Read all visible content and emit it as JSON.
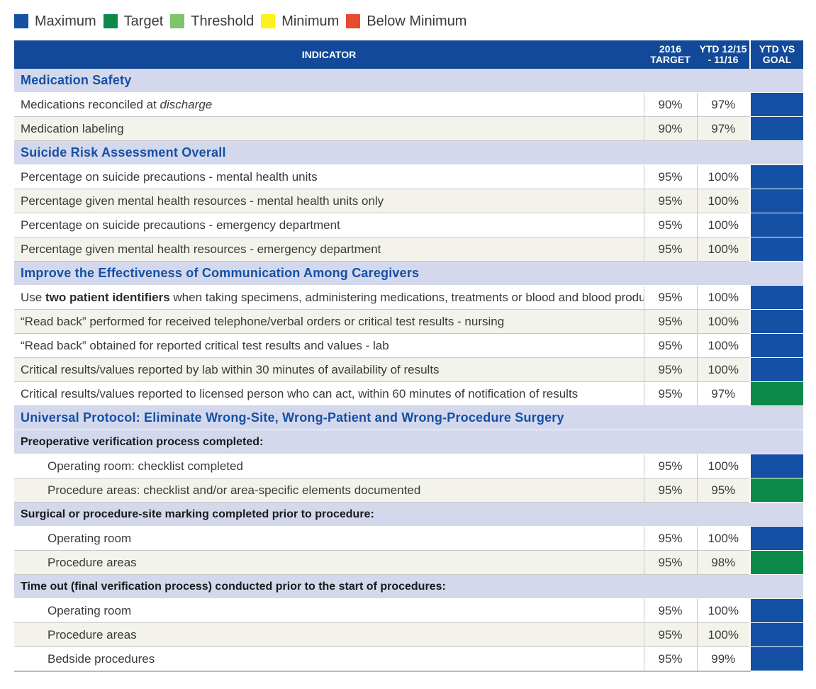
{
  "legend": [
    {
      "label": "Maximum",
      "color": "#1450a3"
    },
    {
      "label": "Target",
      "color": "#0b8a4a"
    },
    {
      "label": "Threshold",
      "color": "#7ec56b"
    },
    {
      "label": "Minimum",
      "color": "#fff020"
    },
    {
      "label": "Below Minimum",
      "color": "#e84a2c"
    }
  ],
  "header": {
    "indicator": "INDICATOR",
    "target": [
      "2016",
      "TARGET"
    ],
    "ytd": [
      "YTD 12/15",
      "- 11/16"
    ],
    "goal": [
      "YTD VS",
      "GOAL"
    ]
  },
  "rows": [
    {
      "kind": "section",
      "label": "Medication Safety"
    },
    {
      "kind": "data",
      "parts": [
        "Medications reconciled at ",
        {
          "i": "discharge"
        }
      ],
      "target": "90%",
      "ytd": "97%",
      "status": "Maximum"
    },
    {
      "kind": "data",
      "parts": [
        "Medication labeling"
      ],
      "target": "90%",
      "ytd": "97%",
      "status": "Maximum"
    },
    {
      "kind": "section",
      "label": "Suicide Risk Assessment Overall"
    },
    {
      "kind": "data",
      "parts": [
        "Percentage on suicide precautions - mental health units"
      ],
      "target": "95%",
      "ytd": "100%",
      "status": "Maximum"
    },
    {
      "kind": "data",
      "parts": [
        "Percentage given mental health resources - mental health units only"
      ],
      "target": "95%",
      "ytd": "100%",
      "status": "Maximum"
    },
    {
      "kind": "data",
      "parts": [
        "Percentage on suicide precautions - emergency department"
      ],
      "target": "95%",
      "ytd": "100%",
      "status": "Maximum"
    },
    {
      "kind": "data",
      "parts": [
        "Percentage given mental health resources - emergency department"
      ],
      "target": "95%",
      "ytd": "100%",
      "status": "Maximum"
    },
    {
      "kind": "section",
      "label": "Improve the Effectiveness of Communication Among Caregivers"
    },
    {
      "kind": "data",
      "parts": [
        "Use ",
        {
          "b": "two patient identifiers"
        },
        " when taking specimens, administering medications, treatments or blood and blood products"
      ],
      "target": "95%",
      "ytd": "100%",
      "status": "Maximum"
    },
    {
      "kind": "data",
      "parts": [
        "“Read back” performed for received telephone/verbal orders or critical test results - nursing"
      ],
      "target": "95%",
      "ytd": "100%",
      "status": "Maximum"
    },
    {
      "kind": "data",
      "parts": [
        "“Read back” obtained for reported critical test results and values - lab"
      ],
      "target": "95%",
      "ytd": "100%",
      "status": "Maximum"
    },
    {
      "kind": "data",
      "parts": [
        "Critical results/values reported by lab within 30 minutes of availability of results"
      ],
      "target": "95%",
      "ytd": "100%",
      "status": "Maximum"
    },
    {
      "kind": "data",
      "parts": [
        "Critical results/values reported to licensed person who can act, within 60 minutes of notification of results"
      ],
      "target": "95%",
      "ytd": "97%",
      "status": "Target"
    },
    {
      "kind": "section",
      "label": "Universal Protocol: Eliminate Wrong-Site, Wrong-Patient and Wrong-Procedure Surgery"
    },
    {
      "kind": "subsection",
      "label": "Preoperative verification process completed:"
    },
    {
      "kind": "data",
      "indent": true,
      "parts": [
        "Operating room: checklist completed"
      ],
      "target": "95%",
      "ytd": "100%",
      "status": "Maximum"
    },
    {
      "kind": "data",
      "indent": true,
      "parts": [
        "Procedure areas: checklist and/or area-specific elements documented"
      ],
      "target": "95%",
      "ytd": "95%",
      "status": "Target"
    },
    {
      "kind": "subsection",
      "label": "Surgical or procedure-site marking completed prior to procedure:"
    },
    {
      "kind": "data",
      "indent": true,
      "parts": [
        "Operating room"
      ],
      "target": "95%",
      "ytd": "100%",
      "status": "Maximum"
    },
    {
      "kind": "data",
      "indent": true,
      "parts": [
        "Procedure areas"
      ],
      "target": "95%",
      "ytd": "98%",
      "status": "Target"
    },
    {
      "kind": "subsection",
      "label": "Time out (final verification process) conducted prior to the start of procedures:"
    },
    {
      "kind": "data",
      "indent": true,
      "parts": [
        "Operating room"
      ],
      "target": "95%",
      "ytd": "100%",
      "status": "Maximum"
    },
    {
      "kind": "data",
      "indent": true,
      "parts": [
        "Procedure areas"
      ],
      "target": "95%",
      "ytd": "100%",
      "status": "Maximum"
    },
    {
      "kind": "data",
      "indent": true,
      "parts": [
        "Bedside procedures"
      ],
      "target": "95%",
      "ytd": "99%",
      "status": "Maximum"
    }
  ]
}
